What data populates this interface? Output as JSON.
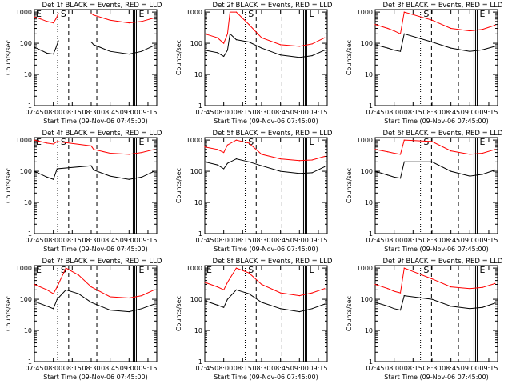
{
  "page": {
    "background": "#ffffff"
  },
  "colors": {
    "events": "#000000",
    "lld": "#ff0000",
    "axes": "#000000"
  },
  "shared": {
    "ylabel": "Counts/sec",
    "xlabel": "Start Time (09-Nov-06 07:45:00)",
    "x_ticks": [
      "07:45",
      "08:00",
      "08:15",
      "08:30",
      "08:45",
      "09:00",
      "09:15"
    ],
    "y_ticks": [
      "1",
      "10",
      "100",
      "1000"
    ],
    "markers": {
      "start": "S",
      "end": "E",
      "lower": "L"
    }
  },
  "chart_data": [
    {
      "id": "det1f",
      "title": "Det 1f BLACK = Events, RED = LLD",
      "type": "line",
      "ylim": [
        1,
        1000
      ],
      "y_scale": "log",
      "markers_shown": [
        "E",
        "S",
        "E"
      ],
      "series": [
        {
          "name": "Events",
          "x": [
            "07:45",
            "07:50",
            "07:55",
            "08:00",
            "08:02",
            "08:04",
            "08:06",
            "08:10",
            "08:20",
            "08:30",
            "08:32",
            "08:45",
            "09:00",
            "09:10",
            "09:20"
          ],
          "y": [
            75,
            60,
            48,
            45,
            70,
            120,
            null,
            null,
            null,
            110,
            90,
            55,
            45,
            55,
            85
          ]
        },
        {
          "name": "LLD",
          "x": [
            "07:45",
            "07:50",
            "07:55",
            "08:00",
            "08:02",
            "08:04",
            "08:06",
            "08:10",
            "08:20",
            "08:30",
            "08:32",
            "08:45",
            "09:00",
            "09:10",
            "09:20"
          ],
          "y": [
            700,
            600,
            500,
            450,
            600,
            900,
            null,
            null,
            null,
            900,
            800,
            550,
            450,
            500,
            650
          ]
        }
      ]
    },
    {
      "id": "det2f",
      "title": "Det 2f BLACK = Events, RED = LLD",
      "type": "line",
      "ylim": [
        1,
        1000
      ],
      "y_scale": "log",
      "markers_shown": [
        "S",
        "L"
      ],
      "series": [
        {
          "name": "Events",
          "x": [
            "07:45",
            "07:55",
            "08:00",
            "08:03",
            "08:05",
            "08:10",
            "08:20",
            "08:30",
            "08:45",
            "09:00",
            "09:10",
            "09:20"
          ],
          "y": [
            60,
            50,
            38,
            60,
            200,
            130,
            110,
            70,
            42,
            35,
            40,
            60
          ]
        },
        {
          "name": "LLD",
          "x": [
            "07:45",
            "07:55",
            "08:00",
            "08:03",
            "08:05",
            "08:10",
            "08:20",
            "08:30",
            "08:45",
            "09:00",
            "09:10",
            "09:20"
          ],
          "y": [
            200,
            150,
            100,
            200,
            1000,
            1000,
            400,
            150,
            90,
            80,
            95,
            150
          ]
        }
      ]
    },
    {
      "id": "det3f",
      "title": "Det 3f BLACK = Events, RED = LLD",
      "type": "line",
      "ylim": [
        1,
        1000
      ],
      "y_scale": "log",
      "markers_shown": [
        "S",
        "E"
      ],
      "series": [
        {
          "name": "Events",
          "x": [
            "07:45",
            "07:55",
            "08:00",
            "08:05",
            "08:08",
            "08:30",
            "08:45",
            "09:00",
            "09:10",
            "09:20"
          ],
          "y": [
            90,
            70,
            60,
            55,
            200,
            110,
            70,
            55,
            62,
            80
          ]
        },
        {
          "name": "LLD",
          "x": [
            "07:45",
            "07:55",
            "08:00",
            "08:05",
            "08:08",
            "08:30",
            "08:45",
            "09:00",
            "09:10",
            "09:20"
          ],
          "y": [
            400,
            300,
            250,
            200,
            1000,
            550,
            300,
            250,
            280,
            380
          ]
        }
      ]
    },
    {
      "id": "det4f",
      "title": "Det 4f BLACK = Events, RED = LLD",
      "type": "line",
      "ylim": [
        1,
        1000
      ],
      "y_scale": "log",
      "markers_shown": [
        "E",
        "S",
        "E"
      ],
      "series": [
        {
          "name": "Events",
          "x": [
            "07:45",
            "07:55",
            "08:00",
            "08:03",
            "08:30",
            "08:32",
            "08:45",
            "09:00",
            "09:10",
            "09:20"
          ],
          "y": [
            100,
            65,
            55,
            120,
            150,
            110,
            70,
            55,
            65,
            100
          ]
        },
        {
          "name": "LLD",
          "x": [
            "07:45",
            "07:55",
            "08:00",
            "08:03",
            "08:30",
            "08:32",
            "08:45",
            "09:00",
            "09:10",
            "09:20"
          ],
          "y": [
            1000,
            800,
            750,
            900,
            650,
            500,
            380,
            350,
            400,
            500
          ]
        }
      ]
    },
    {
      "id": "det5f",
      "title": "Det 5f BLACK = Events, RED = LLD",
      "type": "line",
      "ylim": [
        1,
        1000
      ],
      "y_scale": "log",
      "markers_shown": [
        "S",
        "L"
      ],
      "series": [
        {
          "name": "Events",
          "x": [
            "07:45",
            "07:55",
            "08:00",
            "08:03",
            "08:10",
            "08:20",
            "08:30",
            "08:45",
            "09:00",
            "09:10",
            "09:20"
          ],
          "y": [
            200,
            160,
            120,
            180,
            250,
            200,
            150,
            100,
            85,
            90,
            140
          ]
        },
        {
          "name": "LLD",
          "x": [
            "07:45",
            "07:55",
            "08:00",
            "08:03",
            "08:10",
            "08:20",
            "08:30",
            "08:45",
            "09:00",
            "09:10",
            "09:20"
          ],
          "y": [
            600,
            500,
            400,
            700,
            1000,
            800,
            350,
            250,
            220,
            230,
            300
          ]
        }
      ]
    },
    {
      "id": "det6f",
      "title": "Det 6f BLACK = Events, RED = LLD",
      "type": "line",
      "ylim": [
        1,
        1000
      ],
      "y_scale": "log",
      "markers_shown": [
        "S",
        "E"
      ],
      "series": [
        {
          "name": "Events",
          "x": [
            "07:45",
            "07:55",
            "08:00",
            "08:05",
            "08:08",
            "08:30",
            "08:45",
            "09:00",
            "09:10",
            "09:20"
          ],
          "y": [
            100,
            75,
            65,
            60,
            200,
            200,
            100,
            70,
            80,
            110
          ]
        },
        {
          "name": "LLD",
          "x": [
            "07:45",
            "07:55",
            "08:00",
            "08:05",
            "08:08",
            "08:30",
            "08:45",
            "09:00",
            "09:10",
            "09:20"
          ],
          "y": [
            500,
            420,
            380,
            350,
            1000,
            900,
            450,
            350,
            380,
            500
          ]
        }
      ]
    },
    {
      "id": "det7f",
      "title": "Det 7f BLACK = Events, RED = LLD",
      "type": "line",
      "ylim": [
        1,
        1000
      ],
      "y_scale": "log",
      "markers_shown": [
        "E",
        "S",
        "E"
      ],
      "series": [
        {
          "name": "Events",
          "x": [
            "07:45",
            "07:55",
            "08:00",
            "08:03",
            "08:10",
            "08:20",
            "08:30",
            "08:45",
            "09:00",
            "09:10",
            "09:20"
          ],
          "y": [
            85,
            60,
            50,
            100,
            200,
            150,
            80,
            45,
            40,
            50,
            70
          ]
        },
        {
          "name": "LLD",
          "x": [
            "07:45",
            "07:55",
            "08:00",
            "08:03",
            "08:10",
            "08:20",
            "08:30",
            "08:45",
            "09:00",
            "09:10",
            "09:20"
          ],
          "y": [
            300,
            200,
            150,
            250,
            1000,
            600,
            250,
            120,
            110,
            130,
            200
          ]
        }
      ]
    },
    {
      "id": "det8f",
      "title": "Det 8f BLACK = Events, RED = LLD",
      "type": "line",
      "ylim": [
        1,
        1000
      ],
      "y_scale": "log",
      "markers_shown": [
        "E",
        "S",
        "L"
      ],
      "series": [
        {
          "name": "Events",
          "x": [
            "07:45",
            "07:55",
            "08:00",
            "08:03",
            "08:10",
            "08:20",
            "08:30",
            "08:45",
            "09:00",
            "09:10",
            "09:20"
          ],
          "y": [
            90,
            65,
            55,
            100,
            200,
            150,
            80,
            50,
            40,
            50,
            70
          ]
        },
        {
          "name": "LLD",
          "x": [
            "07:45",
            "07:55",
            "08:00",
            "08:03",
            "08:10",
            "08:20",
            "08:30",
            "08:45",
            "09:00",
            "09:10",
            "09:20"
          ],
          "y": [
            350,
            250,
            200,
            350,
            1000,
            700,
            300,
            160,
            130,
            160,
            220
          ]
        }
      ]
    },
    {
      "id": "det9f",
      "title": "Det 9f BLACK = Events, RED = LLD",
      "type": "line",
      "ylim": [
        1,
        1000
      ],
      "y_scale": "log",
      "markers_shown": [
        "S",
        "E"
      ],
      "series": [
        {
          "name": "Events",
          "x": [
            "07:45",
            "07:55",
            "08:00",
            "08:05",
            "08:08",
            "08:30",
            "08:45",
            "09:00",
            "09:10",
            "09:20"
          ],
          "y": [
            80,
            60,
            50,
            45,
            130,
            100,
            60,
            50,
            55,
            75
          ]
        },
        {
          "name": "LLD",
          "x": [
            "07:45",
            "07:55",
            "08:00",
            "08:05",
            "08:08",
            "08:30",
            "08:45",
            "09:00",
            "09:10",
            "09:20"
          ],
          "y": [
            300,
            220,
            180,
            160,
            1000,
            450,
            250,
            220,
            240,
            320
          ]
        }
      ]
    }
  ]
}
